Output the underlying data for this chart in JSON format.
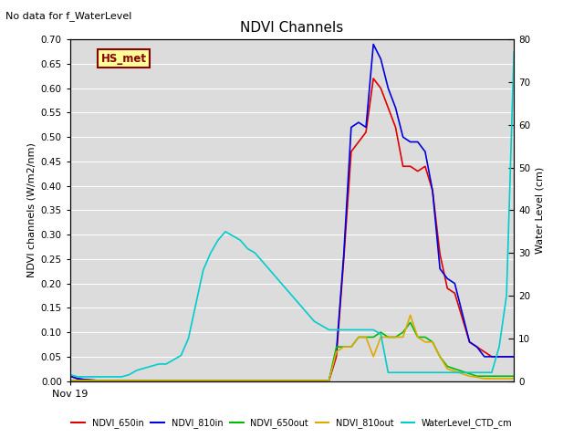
{
  "title": "NDVI Channels",
  "subtitle": "No data for f_WaterLevel",
  "ylabel_left": "NDVI channels (W/m2/nm)",
  "ylabel_right": "Water Level (cm)",
  "xlabel": "Nov 19",
  "annotation": "HS_met",
  "ylim_left": [
    0,
    0.7
  ],
  "ylim_right": [
    0,
    80
  ],
  "plot_bg": "#dcdcdc",
  "series": {
    "NDVI_650in": {
      "color": "#dd0000",
      "x": [
        0,
        1,
        2,
        3,
        4,
        5,
        6,
        7,
        8,
        9,
        10,
        11,
        12,
        13,
        14,
        15,
        16,
        17,
        18,
        19,
        20,
        21,
        22,
        23,
        24,
        25,
        26,
        27,
        28,
        29,
        30,
        31,
        32,
        33,
        34,
        35,
        36,
        37,
        38,
        39,
        40,
        41,
        42,
        43,
        44,
        45,
        46,
        47,
        48,
        49,
        50,
        51,
        52,
        53,
        54,
        55,
        56,
        57,
        58,
        59,
        60
      ],
      "y": [
        0.01,
        0.005,
        0.003,
        0.002,
        0.001,
        0.001,
        0.001,
        0.001,
        0.001,
        0.001,
        0.001,
        0.001,
        0.001,
        0.001,
        0.001,
        0.001,
        0.001,
        0.001,
        0.001,
        0.001,
        0.001,
        0.001,
        0.001,
        0.001,
        0.001,
        0.001,
        0.001,
        0.001,
        0.001,
        0.001,
        0.001,
        0.001,
        0.001,
        0.001,
        0.001,
        0.001,
        0.05,
        0.25,
        0.47,
        0.49,
        0.51,
        0.62,
        0.6,
        0.56,
        0.52,
        0.44,
        0.44,
        0.43,
        0.44,
        0.39,
        0.26,
        0.19,
        0.18,
        0.13,
        0.08,
        0.07,
        0.06,
        0.05,
        0.05,
        0.05,
        0.05
      ]
    },
    "NDVI_810in": {
      "color": "#0000dd",
      "x": [
        0,
        1,
        2,
        3,
        4,
        5,
        6,
        7,
        8,
        9,
        10,
        11,
        12,
        13,
        14,
        15,
        16,
        17,
        18,
        19,
        20,
        21,
        22,
        23,
        24,
        25,
        26,
        27,
        28,
        29,
        30,
        31,
        32,
        33,
        34,
        35,
        36,
        37,
        38,
        39,
        40,
        41,
        42,
        43,
        44,
        45,
        46,
        47,
        48,
        49,
        50,
        51,
        52,
        53,
        54,
        55,
        56,
        57,
        58,
        59,
        60
      ],
      "y": [
        0.01,
        0.005,
        0.003,
        0.002,
        0.001,
        0.001,
        0.001,
        0.001,
        0.001,
        0.001,
        0.001,
        0.001,
        0.001,
        0.001,
        0.001,
        0.001,
        0.001,
        0.001,
        0.001,
        0.001,
        0.001,
        0.001,
        0.001,
        0.001,
        0.001,
        0.001,
        0.001,
        0.001,
        0.001,
        0.001,
        0.001,
        0.001,
        0.001,
        0.001,
        0.001,
        0.001,
        0.06,
        0.26,
        0.52,
        0.53,
        0.52,
        0.69,
        0.66,
        0.6,
        0.56,
        0.5,
        0.49,
        0.49,
        0.47,
        0.39,
        0.23,
        0.21,
        0.2,
        0.14,
        0.08,
        0.07,
        0.05,
        0.05,
        0.05,
        0.05,
        0.05
      ]
    },
    "NDVI_650out": {
      "color": "#00bb00",
      "x": [
        0,
        1,
        2,
        3,
        4,
        5,
        6,
        7,
        8,
        9,
        10,
        11,
        12,
        13,
        14,
        15,
        16,
        17,
        18,
        19,
        20,
        21,
        22,
        23,
        24,
        25,
        26,
        27,
        28,
        29,
        30,
        31,
        32,
        33,
        34,
        35,
        36,
        37,
        38,
        39,
        40,
        41,
        42,
        43,
        44,
        45,
        46,
        47,
        48,
        49,
        50,
        51,
        52,
        53,
        54,
        55,
        56,
        57,
        58,
        59,
        60
      ],
      "y": [
        0.001,
        0.001,
        0.001,
        0.001,
        0.001,
        0.001,
        0.001,
        0.001,
        0.001,
        0.001,
        0.001,
        0.001,
        0.001,
        0.001,
        0.001,
        0.001,
        0.001,
        0.001,
        0.001,
        0.001,
        0.001,
        0.001,
        0.001,
        0.001,
        0.001,
        0.001,
        0.001,
        0.001,
        0.001,
        0.001,
        0.001,
        0.001,
        0.001,
        0.001,
        0.001,
        0.001,
        0.07,
        0.07,
        0.07,
        0.09,
        0.09,
        0.09,
        0.1,
        0.09,
        0.09,
        0.1,
        0.12,
        0.09,
        0.09,
        0.08,
        0.05,
        0.03,
        0.025,
        0.02,
        0.015,
        0.01,
        0.01,
        0.01,
        0.01,
        0.01,
        0.01
      ]
    },
    "NDVI_810out": {
      "color": "#ddaa00",
      "x": [
        0,
        1,
        2,
        3,
        4,
        5,
        6,
        7,
        8,
        9,
        10,
        11,
        12,
        13,
        14,
        15,
        16,
        17,
        18,
        19,
        20,
        21,
        22,
        23,
        24,
        25,
        26,
        27,
        28,
        29,
        30,
        31,
        32,
        33,
        34,
        35,
        36,
        37,
        38,
        39,
        40,
        41,
        42,
        43,
        44,
        45,
        46,
        47,
        48,
        49,
        50,
        51,
        52,
        53,
        54,
        55,
        56,
        57,
        58,
        59,
        60
      ],
      "y": [
        0.001,
        0.001,
        0.001,
        0.001,
        0.001,
        0.001,
        0.001,
        0.001,
        0.001,
        0.001,
        0.001,
        0.001,
        0.001,
        0.001,
        0.001,
        0.001,
        0.001,
        0.001,
        0.001,
        0.001,
        0.001,
        0.001,
        0.001,
        0.001,
        0.001,
        0.001,
        0.001,
        0.001,
        0.001,
        0.001,
        0.001,
        0.001,
        0.001,
        0.001,
        0.001,
        0.001,
        0.06,
        0.07,
        0.07,
        0.09,
        0.09,
        0.05,
        0.09,
        0.09,
        0.09,
        0.09,
        0.135,
        0.09,
        0.08,
        0.08,
        0.05,
        0.025,
        0.02,
        0.015,
        0.01,
        0.008,
        0.005,
        0.005,
        0.005,
        0.005,
        0.005
      ]
    },
    "WaterLevel_CTD_cm": {
      "color": "#00cccc",
      "x": [
        0,
        1,
        2,
        3,
        4,
        5,
        6,
        7,
        8,
        9,
        10,
        11,
        12,
        13,
        14,
        15,
        16,
        17,
        18,
        19,
        20,
        21,
        22,
        23,
        24,
        25,
        26,
        27,
        28,
        29,
        30,
        31,
        32,
        33,
        34,
        35,
        36,
        37,
        38,
        39,
        40,
        41,
        42,
        43,
        44,
        45,
        46,
        47,
        48,
        49,
        50,
        51,
        52,
        53,
        54,
        55,
        56,
        57,
        58,
        59,
        60
      ],
      "y_cm": [
        1.5,
        1.0,
        1.0,
        1.0,
        1.0,
        1.0,
        1.0,
        1.0,
        1.5,
        2.5,
        3.0,
        3.5,
        4.0,
        4.0,
        5.0,
        6.0,
        10,
        18,
        26,
        30,
        33,
        35,
        34,
        33,
        31,
        30,
        28,
        26,
        24,
        22,
        20,
        18,
        16,
        14,
        13,
        12,
        12,
        12,
        12,
        12,
        12,
        12,
        11,
        2,
        2,
        2,
        2,
        2,
        2,
        2,
        2,
        2,
        2,
        2,
        2,
        2,
        2,
        2,
        8,
        20,
        77
      ]
    }
  },
  "legend_entries": [
    "NDVI_650in",
    "NDVI_810in",
    "NDVI_650out",
    "NDVI_810out",
    "WaterLevel_CTD_cm"
  ],
  "legend_colors": [
    "#dd0000",
    "#0000dd",
    "#00bb00",
    "#ddaa00",
    "#00cccc"
  ],
  "yticks_left": [
    0.0,
    0.05,
    0.1,
    0.15,
    0.2,
    0.25,
    0.3,
    0.35,
    0.4,
    0.45,
    0.5,
    0.55,
    0.6,
    0.65,
    0.7
  ],
  "yticks_right": [
    0,
    10,
    20,
    30,
    40,
    50,
    60,
    70,
    80
  ]
}
